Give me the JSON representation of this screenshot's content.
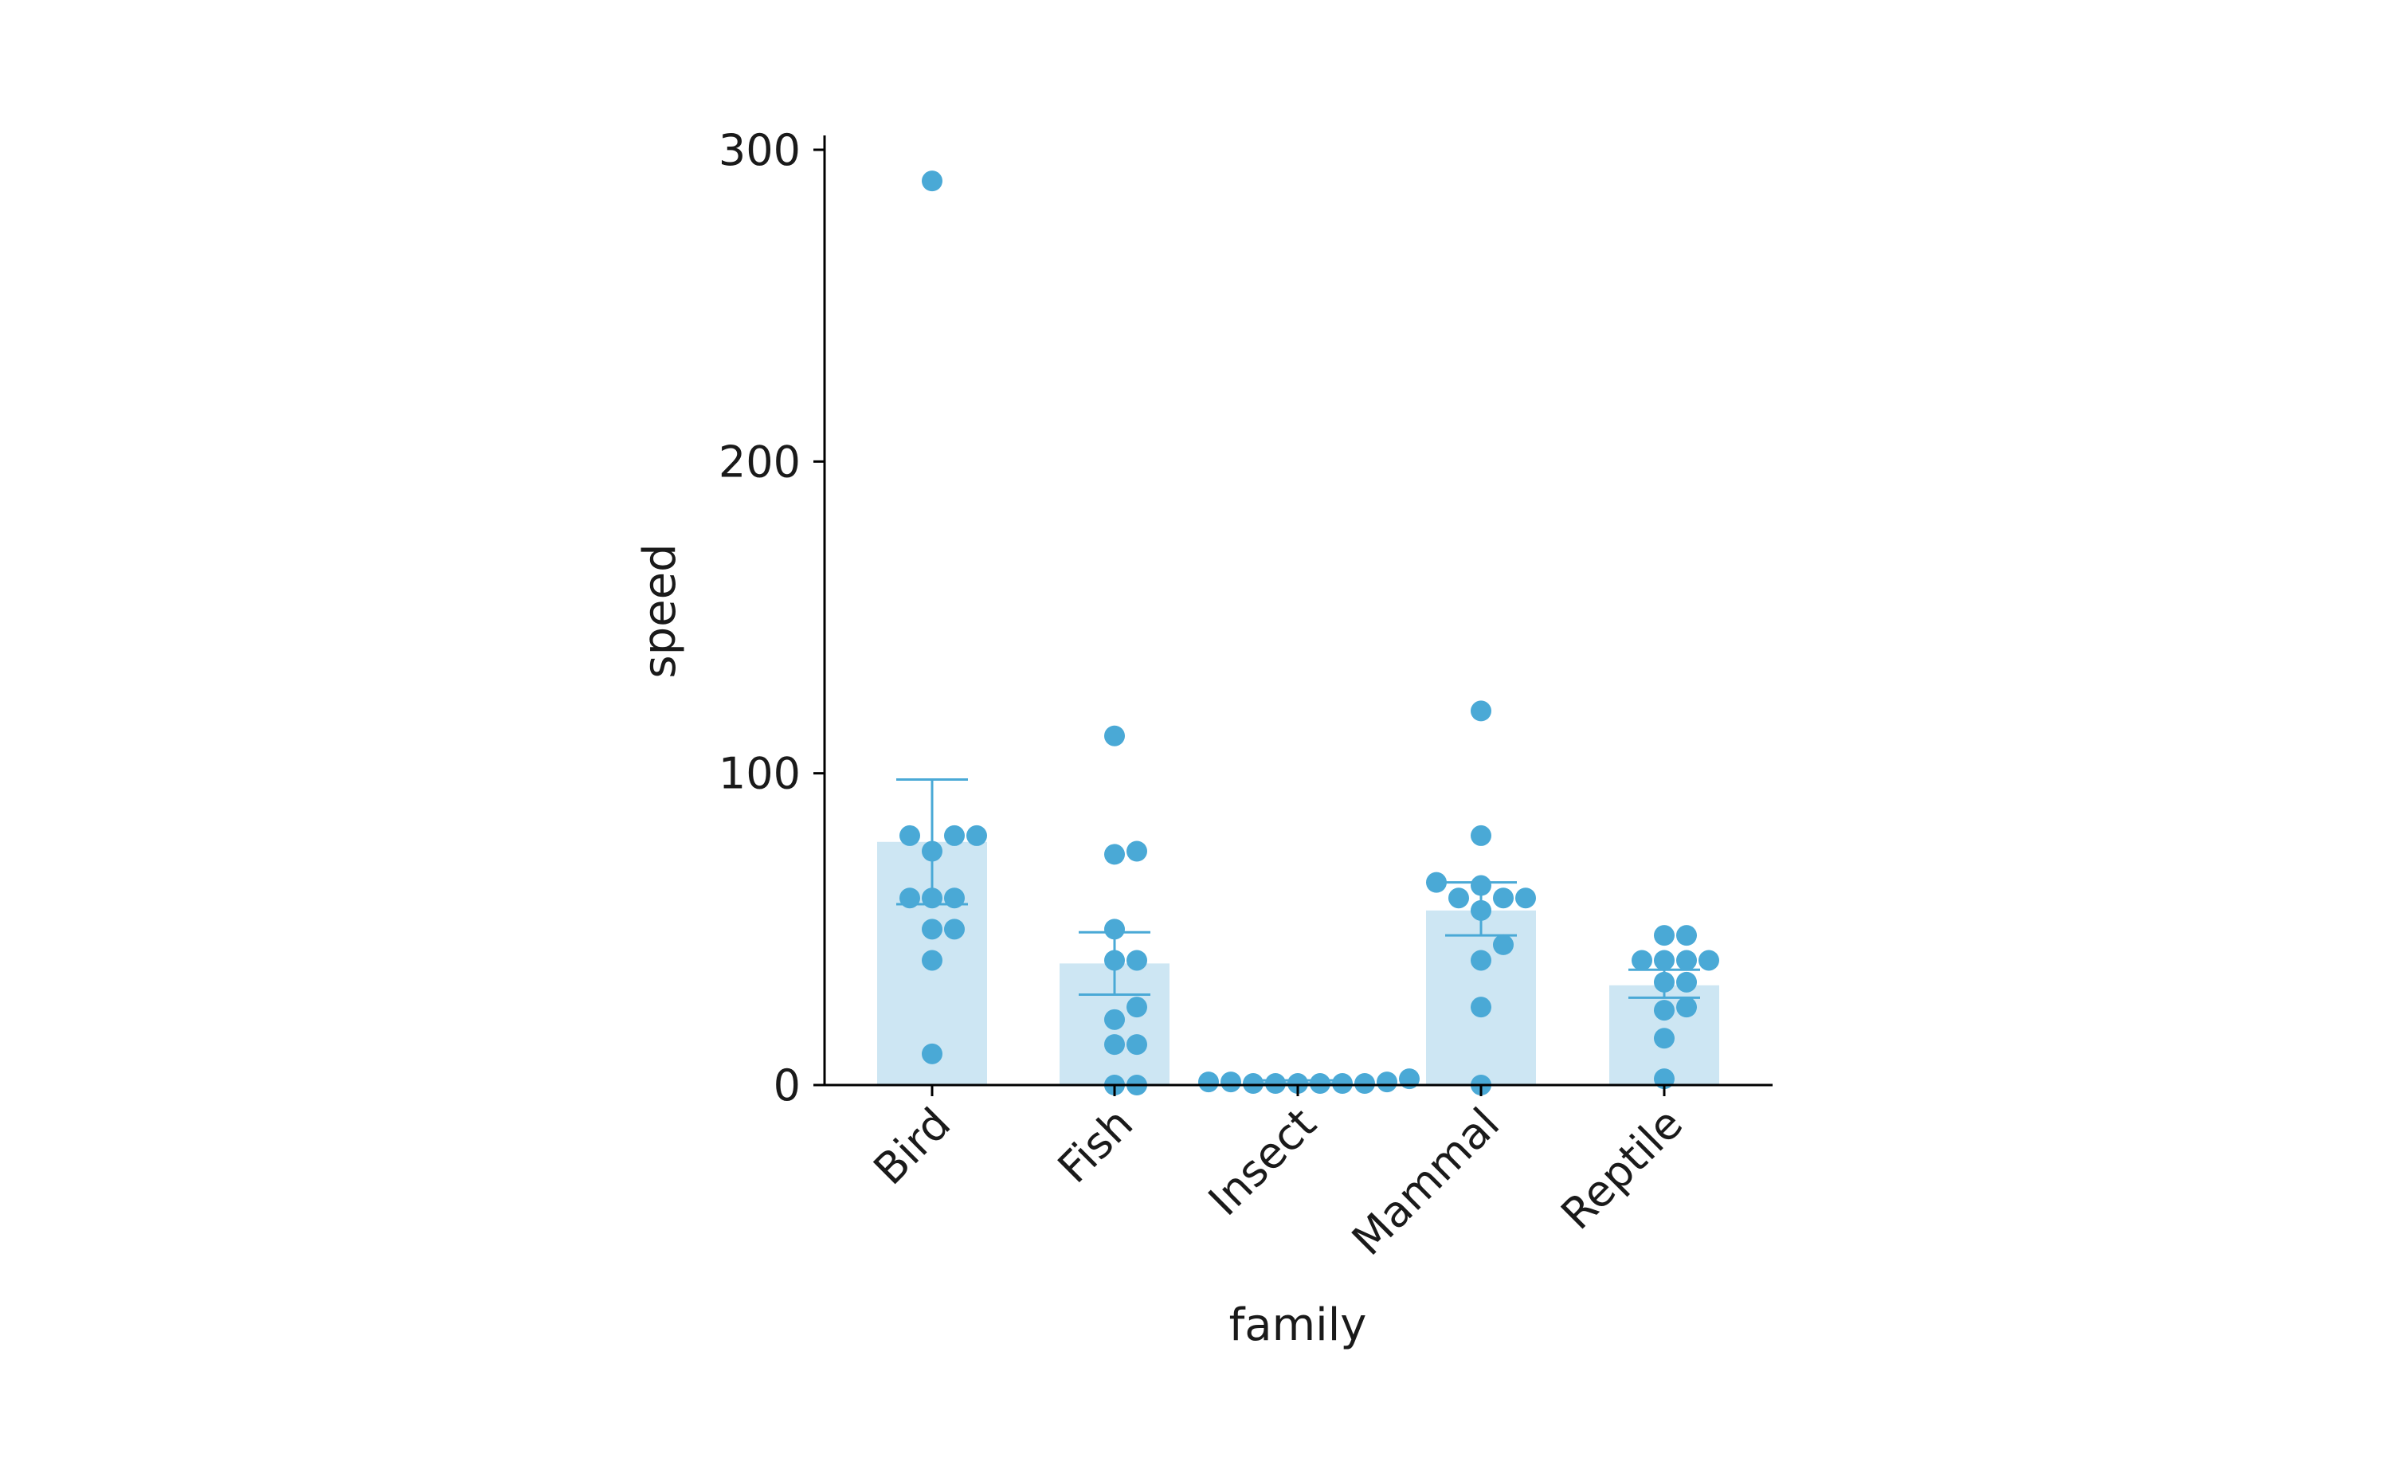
{
  "chart_data": {
    "type": "bar",
    "xlabel": "family",
    "ylabel": "speed",
    "categories": [
      "Bird",
      "Fish",
      "Insect",
      "Mammal",
      "Reptile"
    ],
    "ylim": [
      0,
      305
    ],
    "yticks": [
      0,
      100,
      200,
      300
    ],
    "grid": false,
    "legend": "none",
    "colors": {
      "bar": "#cde6f3",
      "point": "#4aa9d6",
      "errorbar": "#4aa9d6",
      "axis": "#000000"
    },
    "series": [
      {
        "values": [
          78,
          39,
          1,
          56,
          32
        ],
        "error_low": [
          58,
          29,
          0.5,
          48,
          28
        ],
        "error_high": [
          98,
          49,
          1.5,
          65,
          37
        ]
      }
    ],
    "points": [
      [
        290,
        80,
        80,
        80,
        75,
        60,
        60,
        60,
        50,
        50,
        40,
        10
      ],
      [
        112,
        75,
        74,
        50,
        40,
        40,
        25,
        21,
        13,
        13,
        0,
        0
      ],
      [
        0.5,
        0.5,
        0.5,
        0.5,
        1,
        1,
        1,
        2,
        0.5,
        0.5
      ],
      [
        120,
        80,
        65,
        64,
        60,
        60,
        60,
        56,
        45,
        40,
        25,
        0
      ],
      [
        48,
        48,
        40,
        40,
        40,
        40,
        33,
        33,
        25,
        24,
        15,
        2
      ]
    ]
  }
}
